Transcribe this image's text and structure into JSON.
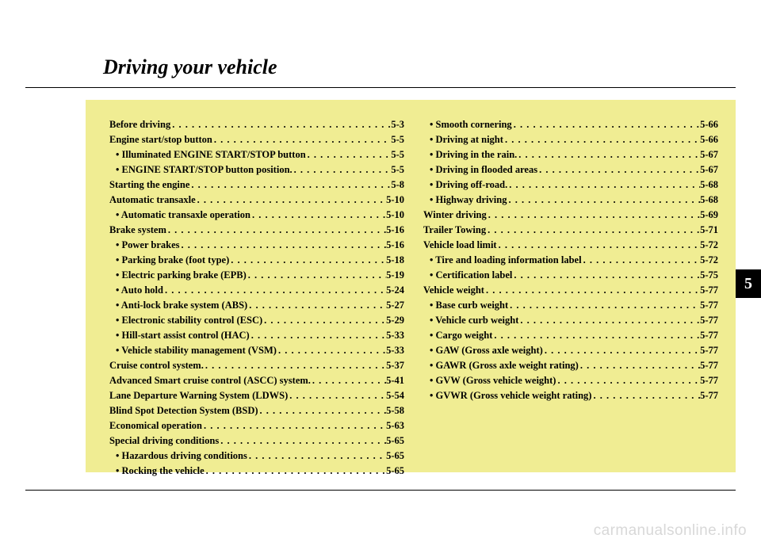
{
  "page": {
    "title": "Driving your vehicle",
    "title_fontsize": 26,
    "tab_number": "5",
    "watermark": "carmanualsonline.info",
    "box_bg": "#f0ed93",
    "line_color": "#000000",
    "text_color": "#000000"
  },
  "toc": {
    "col1": [
      {
        "level": 1,
        "label": "Before driving",
        "page": "5-3"
      },
      {
        "level": 1,
        "label": "Engine start/stop button",
        "page": "5-5"
      },
      {
        "level": 2,
        "label": "• Illuminated ENGINE START/STOP button",
        "page": "5-5"
      },
      {
        "level": 2,
        "label": "• ENGINE START/STOP button position.",
        "page": "5-5"
      },
      {
        "level": 1,
        "label": "Starting the engine",
        "page": "5-8"
      },
      {
        "level": 1,
        "label": "Automatic transaxle",
        "page": "5-10"
      },
      {
        "level": 2,
        "label": "• Automatic transaxle operation",
        "page": "5-10"
      },
      {
        "level": 1,
        "label": "Brake system",
        "page": "5-16"
      },
      {
        "level": 2,
        "label": "• Power brakes",
        "page": "5-16"
      },
      {
        "level": 2,
        "label": "• Parking brake (foot type)",
        "page": "5-18"
      },
      {
        "level": 2,
        "label": "• Electric parking brake (EPB)",
        "page": "5-19"
      },
      {
        "level": 2,
        "label": "• Auto hold",
        "page": "5-24"
      },
      {
        "level": 2,
        "label": "• Anti-lock brake system (ABS)",
        "page": "5-27"
      },
      {
        "level": 2,
        "label": "• Electronic stability control (ESC)",
        "page": "5-29"
      },
      {
        "level": 2,
        "label": "• Hill-start assist control (HAC)",
        "page": "5-33"
      },
      {
        "level": 2,
        "label": "• Vehicle stability management (VSM)",
        "page": "5-33"
      },
      {
        "level": 1,
        "label": "Cruise control system.",
        "page": "5-37"
      },
      {
        "level": 1,
        "label": "Advanced Smart cruise control (ASCC) system.",
        "page": "5-41"
      },
      {
        "level": 1,
        "label": "Lane Departure Warning System (LDWS)",
        "page": "5-54"
      },
      {
        "level": 1,
        "label": "Blind Spot Detection System (BSD)",
        "page": "5-58"
      },
      {
        "level": 1,
        "label": "Economical operation",
        "page": "5-63"
      },
      {
        "level": 1,
        "label": "Special driving conditions",
        "page": "5-65"
      },
      {
        "level": 2,
        "label": "• Hazardous driving conditions",
        "page": "5-65"
      },
      {
        "level": 2,
        "label": "• Rocking the vehicle",
        "page": "5-65"
      }
    ],
    "col2": [
      {
        "level": 2,
        "label": "• Smooth cornering",
        "page": "5-66"
      },
      {
        "level": 2,
        "label": "• Driving at night",
        "page": "5-66"
      },
      {
        "level": 2,
        "label": "• Driving in the rain.",
        "page": "5-67"
      },
      {
        "level": 2,
        "label": "• Driving in flooded areas",
        "page": "5-67"
      },
      {
        "level": 2,
        "label": "• Driving off-road.",
        "page": "5-68"
      },
      {
        "level": 2,
        "label": "• Highway driving",
        "page": "5-68"
      },
      {
        "level": 1,
        "label": "Winter driving",
        "page": "5-69"
      },
      {
        "level": 1,
        "label": "Trailer Towing",
        "page": "5-71"
      },
      {
        "level": 1,
        "label": "Vehicle load limit",
        "page": "5-72"
      },
      {
        "level": 2,
        "label": "• Tire and loading information label",
        "page": "5-72"
      },
      {
        "level": 2,
        "label": "• Certification label",
        "page": "5-75"
      },
      {
        "level": 1,
        "label": "Vehicle weight",
        "page": "5-77"
      },
      {
        "level": 2,
        "label": "• Base curb weight",
        "page": "5-77"
      },
      {
        "level": 2,
        "label": "• Vehicle curb weight",
        "page": "5-77"
      },
      {
        "level": 2,
        "label": "• Cargo weight",
        "page": "5-77"
      },
      {
        "level": 2,
        "label": "• GAW (Gross axle weight)",
        "page": "5-77"
      },
      {
        "level": 2,
        "label": "• GAWR (Gross axle weight rating)",
        "page": "5-77"
      },
      {
        "level": 2,
        "label": "• GVW (Gross vehicle weight)",
        "page": "5-77"
      },
      {
        "level": 2,
        "label": "• GVWR (Gross vehicle weight rating)",
        "page": "5-77"
      }
    ]
  }
}
